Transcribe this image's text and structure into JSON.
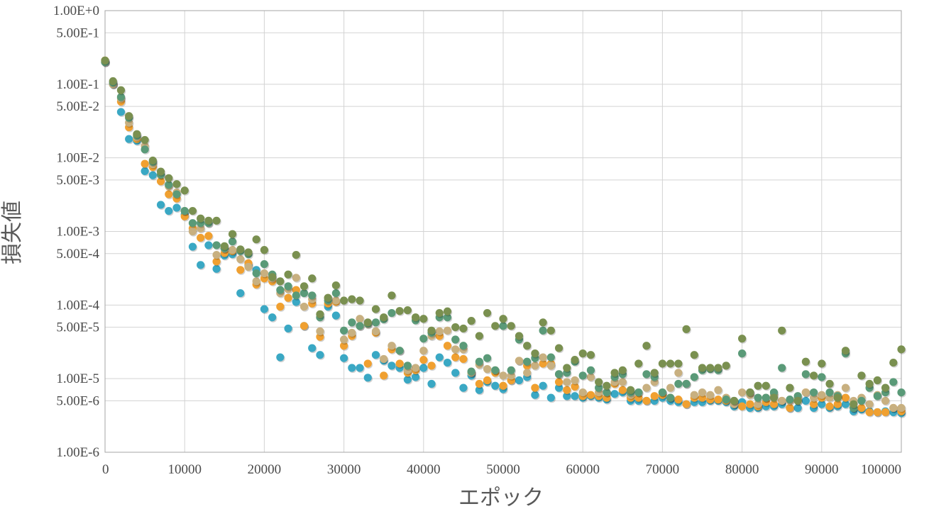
{
  "chart_data": {
    "type": "scatter",
    "title": "",
    "xlabel": "エポック",
    "ylabel": "損失値",
    "x_scale": "linear",
    "y_scale": "log",
    "xlim": [
      0,
      100000
    ],
    "ylim": [
      1e-06,
      1
    ],
    "grid": true,
    "legend": "none",
    "x_tick_labels": [
      "0",
      "10000",
      "20000",
      "30000",
      "40000",
      "50000",
      "60000",
      "70000",
      "80000",
      "90000",
      "100000"
    ],
    "y_ticks": [
      {
        "value": 1,
        "label": "1.00E+0"
      },
      {
        "value": 0.5,
        "label": "5.00E-1"
      },
      {
        "value": 0.1,
        "label": "1.00E-1"
      },
      {
        "value": 0.05,
        "label": "5.00E-2"
      },
      {
        "value": 0.01,
        "label": "1.00E-2"
      },
      {
        "value": 0.005,
        "label": "5.00E-3"
      },
      {
        "value": 0.001,
        "label": "1.00E-3"
      },
      {
        "value": 0.0005,
        "label": "5.00E-4"
      },
      {
        "value": 0.0001,
        "label": "1.00E-4"
      },
      {
        "value": 5e-05,
        "label": "5.00E-5"
      },
      {
        "value": 1e-05,
        "label": "1.00E-5"
      },
      {
        "value": 5e-06,
        "label": "5.00E-6"
      },
      {
        "value": 1e-06,
        "label": "1.00E-6"
      }
    ],
    "x": [
      0,
      1000,
      2000,
      3000,
      4000,
      5000,
      6000,
      7000,
      8000,
      9000,
      10000,
      11000,
      12000,
      13000,
      14000,
      15000,
      16000,
      17000,
      18000,
      19000,
      20000,
      21000,
      22000,
      23000,
      24000,
      25000,
      26000,
      27000,
      28000,
      29000,
      30000,
      31000,
      32000,
      33000,
      34000,
      35000,
      36000,
      37000,
      38000,
      39000,
      40000,
      41000,
      42000,
      43000,
      44000,
      45000,
      46000,
      47000,
      48000,
      49000,
      50000,
      51000,
      52000,
      53000,
      54000,
      55000,
      56000,
      57000,
      58000,
      59000,
      60000,
      61000,
      62000,
      63000,
      64000,
      65000,
      66000,
      67000,
      68000,
      69000,
      70000,
      71000,
      72000,
      73000,
      74000,
      75000,
      76000,
      77000,
      78000,
      79000,
      80000,
      81000,
      82000,
      83000,
      84000,
      85000,
      86000,
      87000,
      88000,
      89000,
      90000,
      91000,
      92000,
      93000,
      94000,
      95000,
      96000,
      97000,
      98000,
      99000,
      100000
    ],
    "series": [
      {
        "color": "#3aa8c4",
        "values": [
          0.2,
          0.1,
          0.042,
          0.018,
          0.017,
          0.0066,
          0.0058,
          0.0023,
          0.0019,
          0.0021,
          0.0017,
          0.00062,
          0.00035,
          0.00065,
          0.00031,
          0.00047,
          0.00049,
          0.000145,
          0.00035,
          0.0003,
          8.8e-05,
          6.8e-05,
          1.95e-05,
          4.8e-05,
          0.00011,
          5.2e-05,
          2.6e-05,
          2.1e-05,
          9.5e-05,
          7.2e-05,
          1.9e-05,
          1.4e-05,
          1.4e-05,
          1.03e-05,
          2.1e-05,
          1.75e-05,
          1.5e-05,
          1.4e-05,
          9.7e-06,
          1.05e-05,
          1.4e-05,
          8.5e-06,
          1.95e-05,
          1.65e-05,
          1.2e-05,
          7.5e-06,
          1.1e-05,
          7e-06,
          9e-06,
          8e-06,
          7.2e-06,
          9.5e-06,
          9.5e-06,
          1.05e-05,
          6e-06,
          8e-06,
          5.5e-06,
          7.5e-06,
          5.8e-06,
          5.8e-06,
          5.5e-06,
          5.8e-06,
          5.5e-06,
          5.2e-06,
          6.2e-06,
          6.5e-06,
          5e-06,
          5e-06,
          5e-06,
          5e-06,
          5.5e-06,
          5e-06,
          4.8e-06,
          4.5e-06,
          4.8e-06,
          4.8e-06,
          5e-06,
          5e-06,
          4.8e-06,
          4.2e-06,
          4.8e-06,
          4e-06,
          4e-06,
          4.2e-06,
          4.2e-06,
          4.5e-06,
          4e-06,
          4e-06,
          5e-06,
          4e-06,
          4.5e-06,
          4e-06,
          4.2e-06,
          4.5e-06,
          3.6e-06,
          3.8e-06,
          3.6e-06,
          3.5e-06,
          3.6e-06,
          3.5e-06,
          3.4e-06
        ]
      },
      {
        "color": "#f0a030",
        "values": [
          0.21,
          0.1,
          0.058,
          0.026,
          0.018,
          0.0083,
          0.0075,
          0.0048,
          0.0032,
          0.0028,
          0.0016,
          0.0011,
          0.00082,
          0.00087,
          0.00039,
          0.00051,
          0.00054,
          0.0003,
          0.00037,
          0.00019,
          0.00023,
          0.00021,
          9.5e-05,
          0.000125,
          0.00016,
          5.2e-05,
          0.000105,
          3.7e-05,
          0.000105,
          0.00011,
          2.8e-05,
          3.8e-05,
          5.2e-05,
          1.6e-05,
          4.2e-05,
          1.1e-05,
          2.5e-05,
          1.6e-05,
          1.2e-05,
          1.3e-05,
          1.8e-05,
          1.5e-05,
          3.8e-05,
          2.8e-05,
          1.95e-05,
          1.85e-05,
          1.2e-05,
          8.5e-06,
          9.5e-06,
          1.2e-05,
          8e-06,
          9.5e-06,
          1.75e-05,
          1.5e-05,
          7.5e-06,
          1.6e-05,
          1.6e-05,
          9e-06,
          7e-06,
          7.8e-06,
          5.8e-06,
          6e-06,
          5.8e-06,
          5.5e-06,
          8.5e-06,
          7e-06,
          5.5e-06,
          5.5e-06,
          5e-06,
          5.8e-06,
          6e-06,
          5.5e-06,
          5.2e-06,
          4.5e-06,
          5.5e-06,
          5.5e-06,
          5.2e-06,
          5.2e-06,
          5e-06,
          4.5e-06,
          4.2e-06,
          4.5e-06,
          4.2e-06,
          4.8e-06,
          4.5e-06,
          5e-06,
          4e-06,
          5e-06,
          6.5e-06,
          4.5e-06,
          5.5e-06,
          4.2e-06,
          4.5e-06,
          5.5e-06,
          4e-06,
          4e-06,
          3.5e-06,
          3.5e-06,
          3.5e-06,
          4e-06,
          3.6e-06
        ]
      },
      {
        "color": "#c8b080",
        "values": [
          0.2,
          0.1,
          0.064,
          0.03,
          0.019,
          0.0145,
          0.0082,
          0.0059,
          0.0041,
          0.0034,
          0.0019,
          0.001,
          0.0011,
          0.0013,
          0.00048,
          0.00058,
          0.00056,
          0.00042,
          0.00033,
          0.00021,
          0.00027,
          0.00023,
          0.000145,
          0.000165,
          0.000235,
          9.5e-05,
          0.00012,
          4.4e-05,
          0.000125,
          0.000115,
          3.4e-05,
          4.2e-05,
          6.5e-05,
          5.5e-05,
          4.4e-05,
          1.85e-05,
          2.8e-05,
          2.4e-05,
          1.3e-05,
          1.4e-05,
          2.4e-05,
          3.8e-05,
          4.4e-05,
          4.5e-05,
          2.5e-05,
          2.5e-05,
          1.2e-05,
          1.55e-05,
          1.35e-05,
          1.3e-05,
          1.1e-05,
          1.1e-05,
          1.75e-05,
          1.2e-05,
          1.5e-05,
          1.95e-05,
          1.5e-05,
          1.15e-05,
          9e-06,
          9.5e-06,
          6.5e-06,
          1.05e-05,
          6.5e-06,
          6.5e-06,
          9e-06,
          9e-06,
          6e-06,
          6.5e-06,
          7.5e-06,
          9e-06,
          6.5e-06,
          7.5e-06,
          1.2e-05,
          8.5e-06,
          6e-06,
          6.5e-06,
          6e-06,
          7e-06,
          5.5e-06,
          4.5e-06,
          6.5e-06,
          6e-06,
          4.5e-06,
          5.5e-06,
          6e-06,
          5e-06,
          5e-06,
          5.5e-06,
          6.5e-06,
          5.5e-06,
          6e-06,
          5.5e-06,
          6e-06,
          7.5e-06,
          5e-06,
          5.5e-06,
          4.5e-06,
          6e-06,
          5e-06,
          4e-06,
          4e-06
        ]
      },
      {
        "color": "#5a9a78",
        "values": [
          0.2,
          0.105,
          0.067,
          0.035,
          0.02,
          0.013,
          0.0088,
          0.0059,
          0.0043,
          0.0032,
          0.0019,
          0.0013,
          0.0013,
          0.0013,
          0.00065,
          0.00059,
          0.00073,
          0.00054,
          0.00049,
          0.00027,
          0.00036,
          0.00026,
          0.00016,
          0.00018,
          0.000135,
          0.000145,
          0.000135,
          6.8e-05,
          0.000115,
          0.000145,
          4.5e-05,
          5.8e-05,
          5.2e-05,
          5.6e-05,
          5.8e-05,
          6.4e-05,
          7.8e-05,
          2.4e-05,
          1.5e-05,
          6.2e-05,
          3.5e-05,
          4.2e-05,
          6.8e-05,
          6.8e-05,
          3.4e-05,
          2.8e-05,
          1.25e-05,
          1.7e-05,
          1.9e-05,
          1.3e-05,
          5.2e-05,
          1.3e-05,
          3.4e-05,
          1.7e-05,
          1.9e-05,
          4.5e-05,
          1.95e-05,
          1.15e-05,
          1.2e-05,
          1.7e-05,
          1.1e-05,
          1.3e-05,
          7.5e-06,
          6.5e-06,
          1.05e-05,
          1.15e-05,
          6.5e-06,
          6.5e-06,
          1.15e-05,
          1.05e-05,
          6.5e-06,
          5.5e-06,
          8.5e-06,
          8.5e-06,
          1.05e-05,
          1.3e-05,
          1.35e-05,
          1.3e-05,
          5.2e-06,
          5e-06,
          2.2e-05,
          6.5e-06,
          5.5e-06,
          5.5e-06,
          6.5e-06,
          1.4e-05,
          5.2e-06,
          5.8e-06,
          1.15e-05,
          6.5e-06,
          1.05e-05,
          6.5e-06,
          5.8e-06,
          2.2e-05,
          4e-06,
          5e-06,
          7.5e-06,
          5.8e-06,
          6.5e-06,
          9e-06,
          6.5e-06
        ]
      },
      {
        "color": "#7a9050",
        "values": [
          0.21,
          0.11,
          0.083,
          0.037,
          0.021,
          0.0175,
          0.0092,
          0.0065,
          0.0053,
          0.0044,
          0.0036,
          0.0019,
          0.0015,
          0.0014,
          0.0014,
          0.00063,
          0.00092,
          0.00057,
          0.00052,
          0.00078,
          0.00056,
          0.00024,
          0.00021,
          0.00026,
          0.00048,
          0.00018,
          0.00023,
          7.5e-05,
          0.000125,
          0.000185,
          0.000115,
          0.00012,
          0.000115,
          5.8e-05,
          8.8e-05,
          6.8e-05,
          0.000135,
          8.3e-05,
          8.5e-05,
          6.8e-05,
          6.5e-05,
          4.5e-05,
          7.8e-05,
          8.2e-05,
          5e-05,
          4.8e-05,
          6.1e-05,
          3.8e-05,
          7.8e-05,
          5.2e-05,
          6.5e-05,
          5.2e-05,
          3.8e-05,
          2.8e-05,
          2.2e-05,
          5.8e-05,
          4.5e-05,
          2.6e-05,
          1.4e-05,
          1.8e-05,
          2.2e-05,
          2.1e-05,
          9e-06,
          8e-06,
          1.2e-05,
          1.3e-05,
          7e-06,
          1.6e-05,
          2.8e-05,
          1.2e-05,
          1.6e-05,
          1.6e-05,
          1.6e-05,
          4.7e-05,
          2.1e-05,
          1.4e-05,
          1.4e-05,
          1.4e-05,
          1.5e-05,
          5e-06,
          3.5e-05,
          6.5e-06,
          8e-06,
          8e-06,
          5.5e-06,
          4.5e-05,
          7.5e-06,
          5e-06,
          1.7e-05,
          1.1e-05,
          1.6e-05,
          8.5e-06,
          5.5e-06,
          2.4e-05,
          4.5e-06,
          1.1e-05,
          8.5e-06,
          9.5e-06,
          7.5e-06,
          1.65e-05,
          2.5e-05
        ]
      }
    ]
  }
}
